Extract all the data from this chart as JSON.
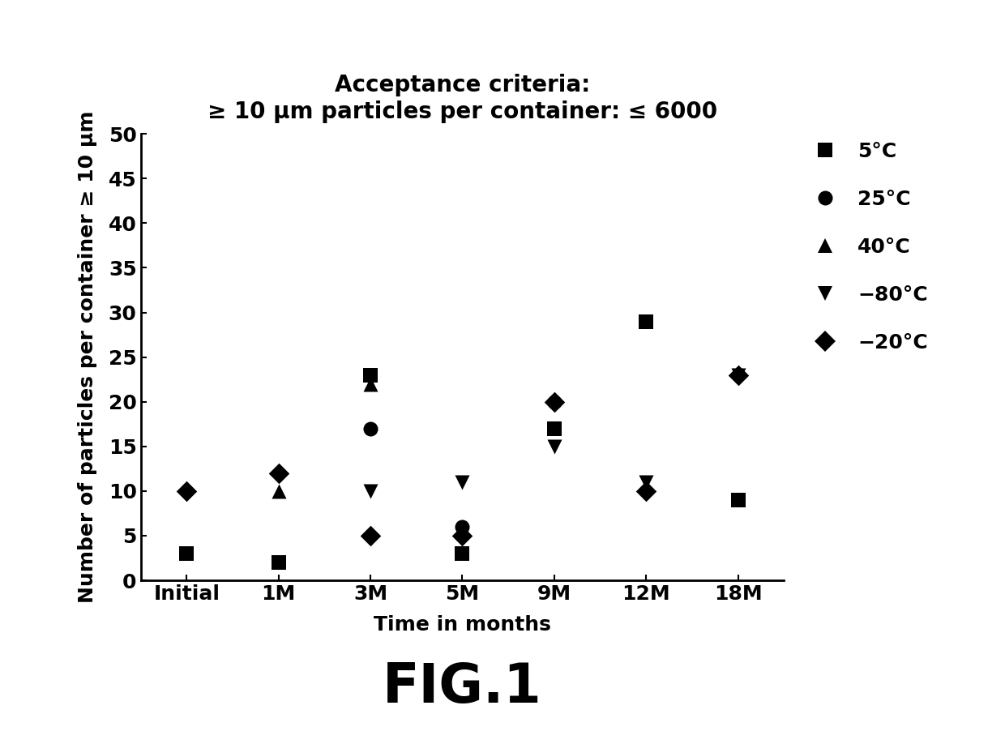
{
  "title_line1": "Acceptance criteria:",
  "title_line2": "≥ 10 μm particles per container: ≤ 6000",
  "xlabel": "Time in months",
  "ylabel": "Number of particles per container ≥ 10 μm",
  "fig_label": "FIG.1",
  "x_positions": [
    0,
    1,
    2,
    3,
    4,
    5,
    6
  ],
  "x_labels": [
    "Initial",
    "1M",
    "3M",
    "5M",
    "9M",
    "12M",
    "18M"
  ],
  "ylim": [
    0,
    50
  ],
  "yticks": [
    0,
    5,
    10,
    15,
    20,
    25,
    30,
    35,
    40,
    45,
    50
  ],
  "series": {
    "5C": {
      "label": "5°C",
      "marker": "s",
      "color": "#000000",
      "data": {
        "0": 3,
        "1": 2,
        "2": 23,
        "3": 3,
        "4": 17,
        "5": 29,
        "6": 9
      }
    },
    "25C": {
      "label": "25°C",
      "marker": "o",
      "color": "#000000",
      "data": {
        "2": 17,
        "3": 6,
        "4": 20
      }
    },
    "40C": {
      "label": "40°C",
      "marker": "^",
      "color": "#000000",
      "data": {
        "1": 10,
        "2": 22
      }
    },
    "m80C": {
      "label": "−80°C",
      "marker": "v",
      "color": "#000000",
      "data": {
        "2": 10,
        "3": 11,
        "4": 15,
        "5": 11,
        "6": 23
      }
    },
    "m20C": {
      "label": "−20°C",
      "marker": "D",
      "color": "#000000",
      "data": {
        "0": 10,
        "1": 12,
        "2": 5,
        "3": 5,
        "4": 20,
        "5": 10,
        "6": 23
      }
    }
  },
  "background_color": "#ffffff",
  "marker_size": 13,
  "font_weight": "bold",
  "title_fontsize": 20,
  "tick_fontsize": 18,
  "label_fontsize": 18,
  "legend_fontsize": 18,
  "figlabel_fontsize": 48
}
